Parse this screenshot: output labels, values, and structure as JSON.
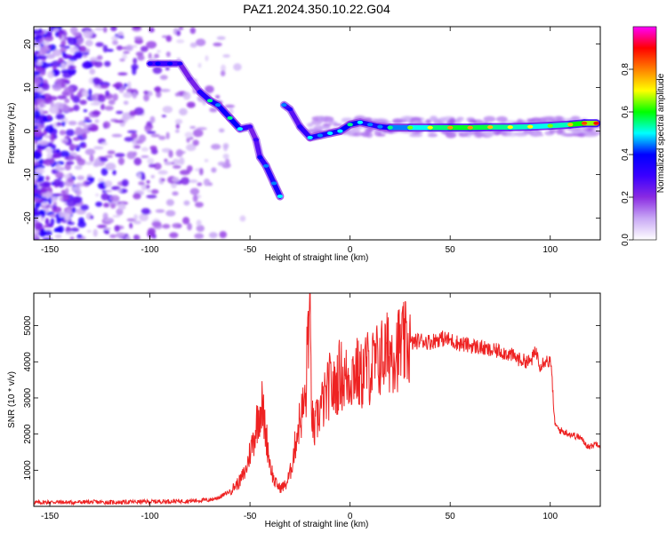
{
  "figure": {
    "title": "PAZ1.2024.350.10.22.G04"
  },
  "chart_data": [
    {
      "type": "heatmap",
      "xlabel": "Height of straight line (km)",
      "ylabel": "Frequency (Hz)",
      "xlim": [
        -158,
        125
      ],
      "ylim": [
        -25,
        24
      ],
      "xticks": [
        -150,
        -100,
        -50,
        0,
        50,
        100
      ],
      "yticks": [
        -20,
        -10,
        0,
        10,
        20
      ],
      "colorbar": {
        "label": "Normalized spectral amplitude",
        "range": [
          0,
          1
        ],
        "ticks": [
          "0.0",
          "0.2",
          "0.4",
          "0.6",
          "0.8"
        ],
        "colors": [
          "#ffffff",
          "#c9a9f5",
          "#8a2be2",
          "#3a00ff",
          "#0000ff",
          "#00ffff",
          "#00ff00",
          "#ffff00",
          "#ff8000",
          "#ff0000",
          "#ff00ff"
        ]
      },
      "ridge": [
        {
          "x": -100,
          "y": 15.5,
          "amp": 0.35
        },
        {
          "x": -96,
          "y": 15.5,
          "amp": 0.4
        },
        {
          "x": -90,
          "y": 15.5,
          "amp": 0.4
        },
        {
          "x": -85,
          "y": 15.5,
          "amp": 0.35
        },
        {
          "x": -80,
          "y": 12,
          "amp": 0.25
        },
        {
          "x": -75,
          "y": 9,
          "amp": 0.35
        },
        {
          "x": -70,
          "y": 7,
          "amp": 0.55
        },
        {
          "x": -66,
          "y": 6,
          "amp": 0.45
        },
        {
          "x": -60,
          "y": 3,
          "amp": 0.55
        },
        {
          "x": -55,
          "y": 0.5,
          "amp": 0.5
        },
        {
          "x": -50,
          "y": 1,
          "amp": 0.3
        },
        {
          "x": -47,
          "y": -2,
          "amp": 0.3
        },
        {
          "x": -45,
          "y": -6,
          "amp": 0.4
        },
        {
          "x": -42,
          "y": -8,
          "amp": 0.45
        },
        {
          "x": -38,
          "y": -12,
          "amp": 0.45
        },
        {
          "x": -35,
          "y": -15,
          "amp": 0.5
        },
        {
          "x": -33,
          "y": 6,
          "amp": 0.45
        },
        {
          "x": -30,
          "y": 5,
          "amp": 0.35
        },
        {
          "x": -25,
          "y": 1,
          "amp": 0.35
        },
        {
          "x": -20,
          "y": -1.5,
          "amp": 0.5
        },
        {
          "x": -15,
          "y": -1,
          "amp": 0.45
        },
        {
          "x": -10,
          "y": -0.5,
          "amp": 0.5
        },
        {
          "x": -5,
          "y": 0,
          "amp": 0.5
        },
        {
          "x": 0,
          "y": 1.5,
          "amp": 0.55
        },
        {
          "x": 5,
          "y": 2,
          "amp": 0.5
        },
        {
          "x": 10,
          "y": 1.5,
          "amp": 0.45
        },
        {
          "x": 15,
          "y": 1,
          "amp": 0.45
        },
        {
          "x": 20,
          "y": 0.8,
          "amp": 0.55
        },
        {
          "x": 30,
          "y": 0.8,
          "amp": 0.65
        },
        {
          "x": 40,
          "y": 0.8,
          "amp": 0.7
        },
        {
          "x": 50,
          "y": 0.8,
          "amp": 0.78
        },
        {
          "x": 60,
          "y": 0.8,
          "amp": 0.78
        },
        {
          "x": 70,
          "y": 0.9,
          "amp": 0.75
        },
        {
          "x": 80,
          "y": 0.9,
          "amp": 0.7
        },
        {
          "x": 90,
          "y": 1,
          "amp": 0.7
        },
        {
          "x": 100,
          "y": 1.2,
          "amp": 0.65
        },
        {
          "x": 110,
          "y": 1.5,
          "amp": 0.75
        },
        {
          "x": 117,
          "y": 1.8,
          "amp": 0.85
        },
        {
          "x": 123,
          "y": 1.8,
          "amp": 0.9
        }
      ]
    },
    {
      "type": "line",
      "xlabel": "Height of straight line (km)",
      "ylabel": "SNR (10 * v/v)",
      "xlim": [
        -158,
        125
      ],
      "ylim": [
        0,
        5900
      ],
      "xticks": [
        -150,
        -100,
        -50,
        0,
        50,
        100
      ],
      "yticks": [
        1000,
        2000,
        3000,
        4000,
        5000
      ],
      "color": "#ee2222",
      "series": [
        {
          "x": [
            -158,
            -150,
            -140,
            -130,
            -120,
            -110,
            -100,
            -90,
            -80,
            -70,
            -65,
            -60,
            -55,
            -52,
            -50,
            -48,
            -46,
            -44,
            -42,
            -40,
            -38,
            -35,
            -32,
            -30,
            -28,
            -26,
            -24,
            -22,
            -21,
            -20,
            -19,
            -18,
            -17,
            -15,
            -12,
            -10,
            -8,
            -5,
            -3,
            0,
            3,
            5,
            8,
            10,
            15,
            20,
            25,
            30,
            35,
            40,
            45,
            50,
            55,
            60,
            65,
            70,
            75,
            80,
            85,
            90,
            93,
            95,
            97,
            100,
            101,
            102,
            103,
            105,
            110,
            115,
            118,
            120,
            123,
            125
          ],
          "y": [
            100,
            120,
            110,
            120,
            110,
            120,
            130,
            140,
            150,
            180,
            260,
            420,
            700,
            1000,
            1500,
            1900,
            2500,
            2800,
            2000,
            1200,
            700,
            500,
            600,
            900,
            1500,
            2200,
            2600,
            3000,
            5200,
            4800,
            2500,
            2000,
            2300,
            2700,
            3000,
            3400,
            3200,
            3700,
            3500,
            3600,
            3800,
            3500,
            3900,
            3800,
            4100,
            4300,
            4400,
            4500,
            4600,
            4550,
            4650,
            4600,
            4500,
            4450,
            4400,
            4300,
            4300,
            4200,
            4050,
            4000,
            4300,
            3900,
            4050,
            4000,
            3500,
            2400,
            2200,
            2100,
            2000,
            1900,
            1700,
            1650,
            1750,
            1700
          ]
        }
      ]
    }
  ]
}
